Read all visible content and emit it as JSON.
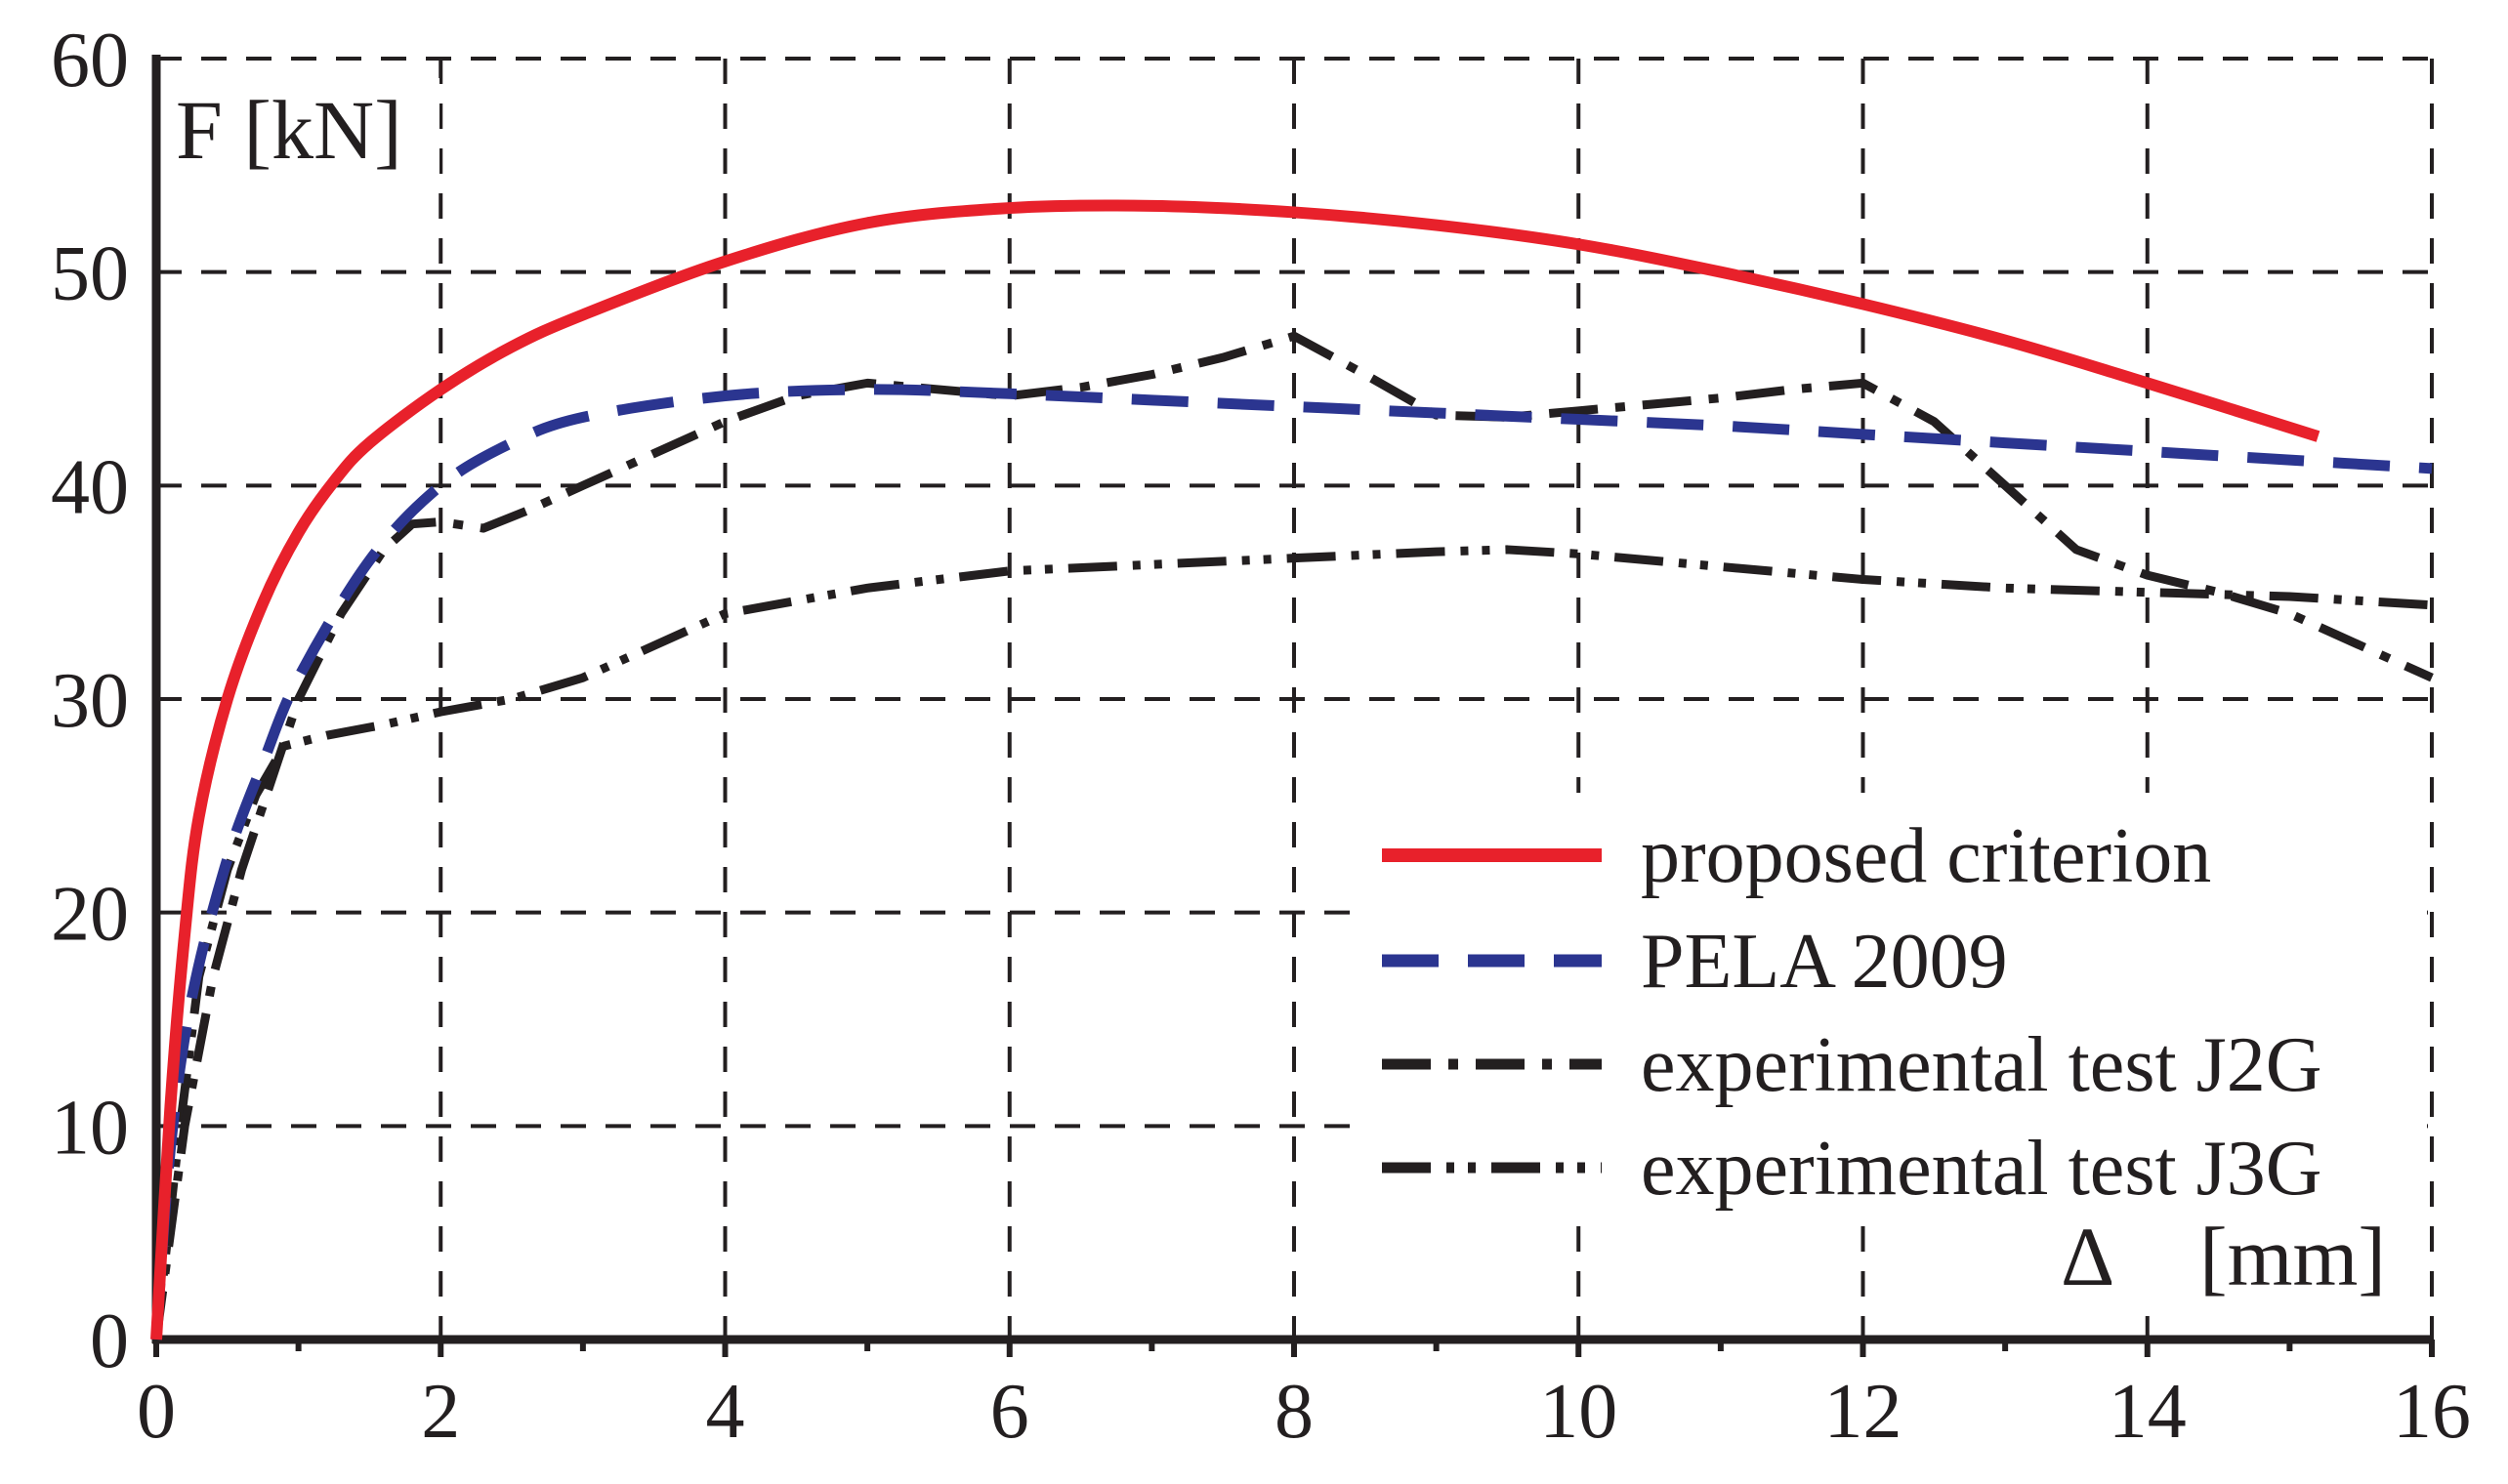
{
  "chart_data": {
    "type": "line",
    "title": "",
    "xlabel": "Δ",
    "xlabel_unit": "[mm]",
    "ylabel": "F [kN]",
    "xlim": [
      0,
      16
    ],
    "ylim": [
      0,
      60
    ],
    "x_ticks": [
      "0",
      "2",
      "4",
      "6",
      "8",
      "10",
      "12",
      "14",
      "16"
    ],
    "y_ticks": [
      "0",
      "10",
      "20",
      "30",
      "40",
      "50",
      "60"
    ],
    "grid": true,
    "legend_position": "bottom-right",
    "series": [
      {
        "name": "proposed criterion",
        "color": "#e8212b",
        "style": "solid",
        "x": [
          0,
          0.1,
          0.2,
          0.3,
          0.5,
          0.75,
          1.0,
          1.25,
          1.5,
          2.0,
          2.5,
          3.0,
          4.0,
          5.0,
          6.0,
          7.0,
          8.0,
          9.0,
          10.0,
          11.0,
          12.0,
          13.0,
          14.0,
          15.2
        ],
        "y": [
          0,
          11,
          19,
          24.5,
          30,
          34.5,
          37.8,
          40.2,
          42,
          44.5,
          46.5,
          48,
          50.5,
          52.3,
          53,
          53.1,
          52.8,
          52.2,
          51.3,
          50,
          48.5,
          46.8,
          44.8,
          42.3
        ]
      },
      {
        "name": "PELA 2009",
        "color": "#2b3590",
        "style": "dashed",
        "x": [
          0,
          0.1,
          0.25,
          0.5,
          0.75,
          1.0,
          1.5,
          2.0,
          2.5,
          3.0,
          4.0,
          5.0,
          6.0,
          7.0,
          8.0,
          9.0,
          10.0,
          11.0,
          12.0,
          13.0,
          14.0,
          15.0,
          16.0
        ],
        "y": [
          0,
          9,
          16,
          22.5,
          27,
          31,
          36.5,
          40,
          42,
          43.2,
          44.2,
          44.5,
          44.3,
          44,
          43.7,
          43.4,
          43.1,
          42.8,
          42.4,
          42,
          41.6,
          41.2,
          40.8
        ]
      },
      {
        "name": "experimental test J2G",
        "color": "#231f20",
        "style": "dashdot",
        "x": [
          0,
          0.1,
          0.2,
          0.4,
          0.6,
          0.85,
          1.0,
          1.3,
          1.6,
          1.8,
          2.0,
          2.3,
          2.6,
          3.0,
          3.5,
          4.0,
          4.5,
          5.0,
          5.5,
          6.0,
          6.5,
          7.0,
          7.5,
          8.0,
          8.5,
          9.0,
          9.5,
          10.0,
          10.5,
          11.0,
          11.5,
          12.0,
          12.5,
          13.0,
          13.5,
          14.0,
          14.5,
          15.0,
          15.5,
          16.0
        ],
        "y": [
          0,
          5,
          10,
          17,
          22,
          27,
          30,
          34,
          37,
          38.2,
          38.3,
          38,
          38.8,
          40,
          41.5,
          43,
          44.2,
          44.8,
          44.5,
          44.2,
          44.6,
          45.2,
          46,
          47,
          45.2,
          43.3,
          43.2,
          43.5,
          43.8,
          44.1,
          44.5,
          44.8,
          43,
          40,
          37,
          35.8,
          35,
          34,
          32.5,
          31
        ]
      },
      {
        "name": "experimental test J3G",
        "color": "#231f20",
        "style": "dashdotdot",
        "x": [
          0,
          0.15,
          0.3,
          0.5,
          0.7,
          0.9,
          1.2,
          1.6,
          2.0,
          2.5,
          3.0,
          3.5,
          4.0,
          4.5,
          5.0,
          6.0,
          7.0,
          8.0,
          9.0,
          9.5,
          10.0,
          11.0,
          12.0,
          13.0,
          14.0,
          15.0,
          16.0
        ],
        "y": [
          0,
          9,
          17,
          22,
          25.5,
          27.8,
          28.3,
          28.8,
          29.4,
          30,
          31,
          32.5,
          34,
          34.6,
          35.2,
          36,
          36.3,
          36.6,
          36.9,
          37,
          36.8,
          36.2,
          35.6,
          35.2,
          35,
          34.8,
          34.4
        ]
      }
    ]
  }
}
